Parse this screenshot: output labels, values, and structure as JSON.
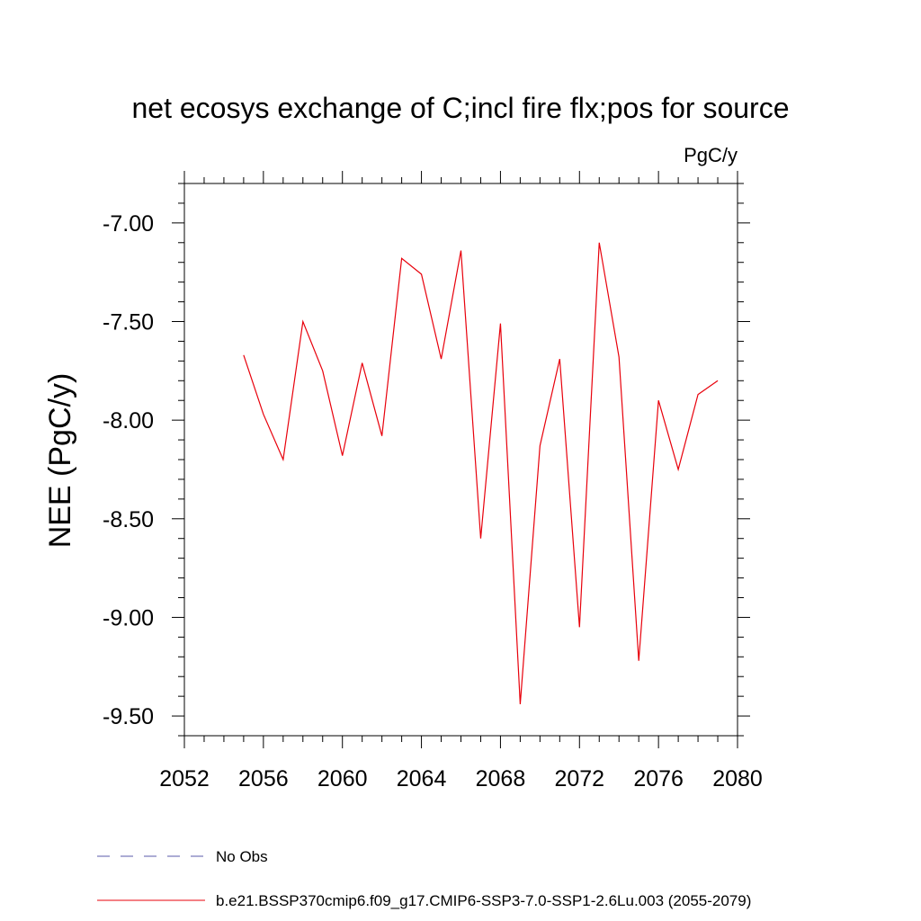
{
  "chart_data": {
    "type": "line",
    "title": "net ecosys exchange of C;incl fire flx;pos for source",
    "units": "PgC/y",
    "ylabel": "NEE  (PgC/y)",
    "xlabel": "",
    "xlim": [
      2052,
      2080
    ],
    "ylim": [
      -9.6,
      -6.8
    ],
    "xticks": [
      2052,
      2056,
      2060,
      2064,
      2068,
      2072,
      2076,
      2080
    ],
    "xtick_labels": [
      "2052",
      "2056",
      "2060",
      "2064",
      "2068",
      "2072",
      "2076",
      "2080"
    ],
    "yticks": [
      -9.5,
      -9.0,
      -8.5,
      -8.0,
      -7.5,
      -7.0
    ],
    "ytick_labels": [
      "-9.50",
      "-9.00",
      "-8.50",
      "-8.00",
      "-7.50",
      "-7.00"
    ],
    "grid": false,
    "legend_position": "bottom-left",
    "series": [
      {
        "name": "b.e21.BSSP370cmip6.f09_g17.CMIP6-SSP3-7.0-SSP1-2.6Lu.003 (2055-2079)",
        "color": "#e8000b",
        "style": "solid",
        "x": [
          2055,
          2056,
          2057,
          2058,
          2059,
          2060,
          2061,
          2062,
          2063,
          2064,
          2065,
          2066,
          2067,
          2068,
          2069,
          2070,
          2071,
          2072,
          2073,
          2074,
          2075,
          2076,
          2077,
          2078,
          2079
        ],
        "y": [
          -7.67,
          -7.97,
          -8.2,
          -7.5,
          -7.75,
          -8.18,
          -7.71,
          -8.08,
          -7.18,
          -7.26,
          -7.69,
          -7.14,
          -8.6,
          -7.51,
          -9.44,
          -8.13,
          -7.69,
          -9.05,
          -7.1,
          -7.68,
          -9.22,
          -7.9,
          -8.25,
          -7.87,
          -7.8
        ]
      }
    ],
    "legend": [
      {
        "label": "No Obs",
        "color": "#5a5aa8",
        "style": "dashed"
      },
      {
        "label": "b.e21.BSSP370cmip6.f09_g17.CMIP6-SSP3-7.0-SSP1-2.6Lu.003 (2055-2079)",
        "color": "#e8000b",
        "style": "solid"
      }
    ]
  }
}
